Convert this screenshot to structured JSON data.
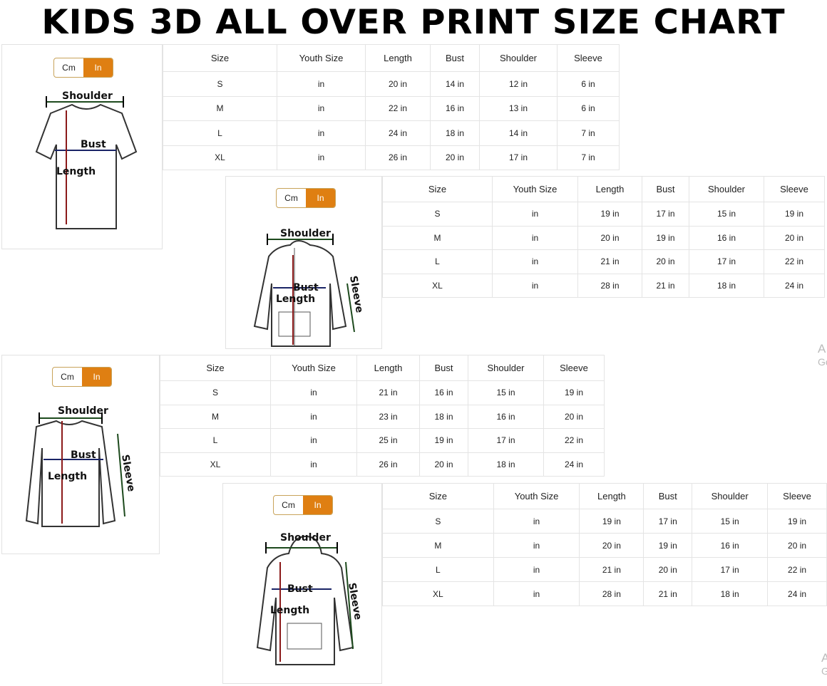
{
  "title": "KIDS 3D ALL OVER PRINT SIZE CHART",
  "unit_toggle": {
    "cm": "Cm",
    "in": "In",
    "selected": "In",
    "accent_color": "#df7f12"
  },
  "labels": {
    "shoulder": "Shoulder",
    "bust": "Bust",
    "length": "Length",
    "sleeve": "Sleeve"
  },
  "columns": [
    "Size",
    "Youth Size",
    "Length",
    "Bust",
    "Shoulder",
    "Sleeve"
  ],
  "charts": [
    {
      "garment": "t-shirt",
      "rows": [
        [
          "S",
          "in",
          "20 in",
          "14 in",
          "12 in",
          "6 in"
        ],
        [
          "M",
          "in",
          "22 in",
          "16 in",
          "13 in",
          "6 in"
        ],
        [
          "L",
          "in",
          "24 in",
          "18 in",
          "14 in",
          "7 in"
        ],
        [
          "XL",
          "in",
          "26 in",
          "20 in",
          "17 in",
          "7 in"
        ]
      ]
    },
    {
      "garment": "zip-hoodie",
      "rows": [
        [
          "S",
          "in",
          "19 in",
          "17 in",
          "15 in",
          "19 in"
        ],
        [
          "M",
          "in",
          "20 in",
          "19 in",
          "16 in",
          "20 in"
        ],
        [
          "L",
          "in",
          "21 in",
          "20 in",
          "17 in",
          "22 in"
        ],
        [
          "XL",
          "in",
          "28 in",
          "21 in",
          "18 in",
          "24 in"
        ]
      ]
    },
    {
      "garment": "long-sleeve",
      "rows": [
        [
          "S",
          "in",
          "21 in",
          "16 in",
          "15 in",
          "19 in"
        ],
        [
          "M",
          "in",
          "23 in",
          "18 in",
          "16 in",
          "20 in"
        ],
        [
          "L",
          "in",
          "25 in",
          "19 in",
          "17 in",
          "22 in"
        ],
        [
          "XL",
          "in",
          "26 in",
          "20 in",
          "18 in",
          "24 in"
        ]
      ]
    },
    {
      "garment": "pullover-hoodie",
      "rows": [
        [
          "S",
          "in",
          "19 in",
          "17 in",
          "15 in",
          "19 in"
        ],
        [
          "M",
          "in",
          "20 in",
          "19 in",
          "16 in",
          "20 in"
        ],
        [
          "L",
          "in",
          "21 in",
          "20 in",
          "17 in",
          "22 in"
        ],
        [
          "XL",
          "in",
          "28 in",
          "21 in",
          "18 in",
          "24 in"
        ]
      ]
    }
  ],
  "watermark": {
    "line1": "A",
    "line2": "Go"
  }
}
